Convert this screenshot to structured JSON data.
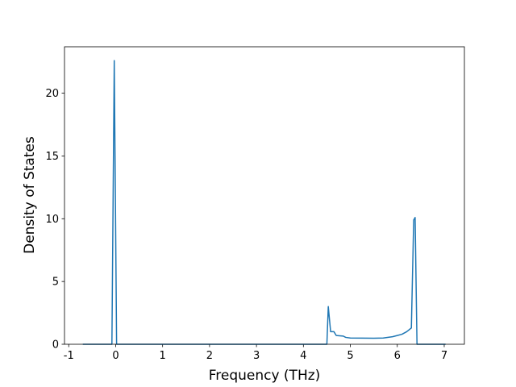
{
  "chart_data": {
    "type": "line",
    "xlabel": "Frequency (THz)",
    "ylabel": "Density of States",
    "x": [
      -0.7,
      -0.08,
      -0.03,
      0.02,
      4.5,
      4.53,
      4.58,
      4.65,
      4.7,
      4.85,
      4.9,
      5.0,
      5.5,
      5.7,
      5.9,
      6.0,
      6.1,
      6.2,
      6.3,
      6.35,
      6.38,
      6.42,
      7.03
    ],
    "values": [
      0,
      0,
      22.6,
      0,
      0,
      3.0,
      1.0,
      1.0,
      0.7,
      0.65,
      0.55,
      0.5,
      0.48,
      0.5,
      0.6,
      0.7,
      0.8,
      1.0,
      1.3,
      9.9,
      10.1,
      0,
      0
    ],
    "color": "#1f77b4",
    "xlim": [
      -1.09,
      7.43
    ],
    "xticks": [
      -1,
      0,
      1,
      2,
      3,
      4,
      5,
      6,
      7
    ],
    "ylim": [
      0,
      23.7
    ],
    "yticks": [
      0,
      5,
      10,
      15,
      20
    ]
  }
}
